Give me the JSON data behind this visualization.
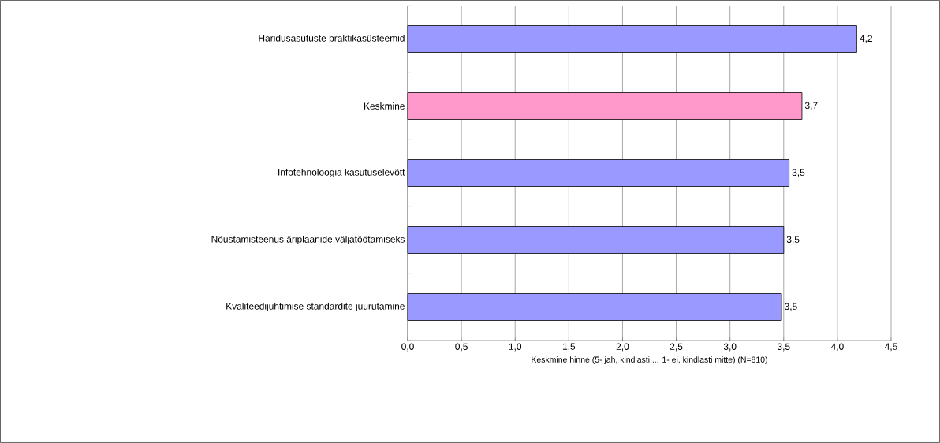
{
  "chart_data": {
    "type": "bar",
    "orientation": "horizontal",
    "categories": [
      "Haridusasutuste praktikasüsteemid",
      "Keskmine",
      "Infotehnoloogia kasutuselevõtt",
      "Nõustamisteenus äriplaanide väljatöötamiseks",
      "Kvaliteedijuhtimise standardite juurutamine"
    ],
    "values": [
      4.18,
      3.67,
      3.55,
      3.5,
      3.48
    ],
    "colors": [
      "#9999ff",
      "#ff99cc",
      "#9999ff",
      "#9999ff",
      "#9999ff"
    ],
    "value_labels": [
      "4,2",
      "3,7",
      "3,5",
      "3,5",
      "3,5"
    ],
    "xlim": [
      0,
      4.5
    ],
    "xticks": [
      {
        "value": 0,
        "label": "0,0"
      },
      {
        "value": 0.5,
        "label": "0,5"
      },
      {
        "value": 1,
        "label": "1,0"
      },
      {
        "value": 1.5,
        "label": "1,5"
      },
      {
        "value": 2,
        "label": "2,0"
      },
      {
        "value": 2.5,
        "label": "2,5"
      },
      {
        "value": 3,
        "label": "3,0"
      },
      {
        "value": 3.5,
        "label": "3,5"
      },
      {
        "value": 4,
        "label": "4,0"
      },
      {
        "value": 4.5,
        "label": "4,5"
      }
    ],
    "xlabel": "Keskmine hinne (5- jah, kindlasti ... 1- ei, kindlasti mitte) (N=810)",
    "grid": "x"
  }
}
